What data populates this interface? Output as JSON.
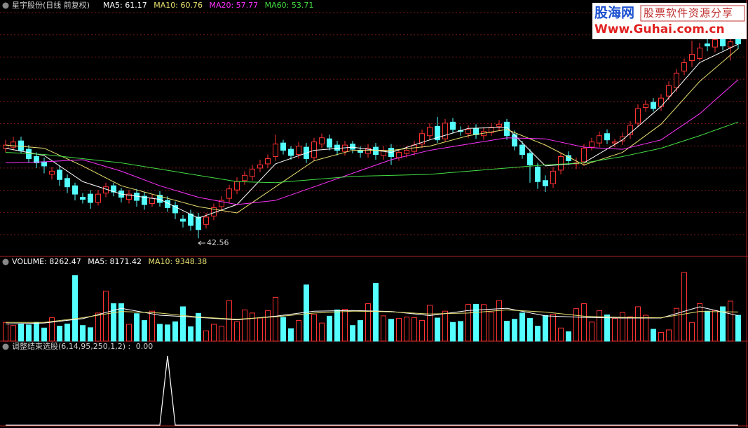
{
  "chart_data": [
    {
      "type": "candlestick",
      "title": "星宇股份(日线 前复权)",
      "ylim": [
        40.9,
        64.4
      ],
      "up_color": "#ff3232",
      "down_color": "#54ffff",
      "open": [
        51.2,
        51.3,
        51.9,
        51.1,
        50.4,
        49.9,
        48.7,
        49.1,
        48.3,
        47.6,
        46.5,
        46.8,
        46.0,
        46.9,
        47.6,
        47.1,
        46.3,
        46.9,
        46.6,
        45.9,
        46.7,
        46.2,
        45.7,
        44.4,
        44.9,
        44.6,
        43.9,
        44.7,
        45.6,
        46.4,
        47.2,
        48.1,
        48.5,
        49.3,
        49.7,
        50.4,
        51.7,
        51.1,
        50.6,
        51.3,
        50.3,
        51.6,
        52.1,
        51.5,
        50.9,
        51.6,
        51.0,
        50.7,
        51.3,
        50.5,
        51.2,
        50.3,
        50.7,
        50.9,
        51.6,
        52.4,
        53.3,
        52.1,
        53.7,
        52.9,
        52.6,
        53.1,
        52.4,
        52.7,
        53.3,
        53.7,
        52.5,
        51.5,
        50.7,
        49.4,
        48.1,
        47.8,
        49.1,
        50.5,
        49.7,
        49.9,
        51.3,
        51.7,
        52.6,
        51.7,
        51.9,
        52.5,
        53.6,
        55.1,
        55.6,
        55.2,
        56.2,
        57.0,
        58.6,
        59.6,
        59.8,
        61.2,
        60.9,
        61.7,
        60.9,
        61.8
      ],
      "high": [
        52.0,
        52.3,
        52.3,
        51.5,
        50.8,
        50.3,
        49.4,
        49.5,
        48.7,
        47.9,
        46.9,
        47.2,
        47.2,
        47.9,
        47.9,
        47.4,
        47.2,
        47.3,
        47.0,
        46.8,
        47.1,
        46.6,
        46.1,
        44.8,
        45.3,
        45.0,
        45.0,
        45.9,
        46.6,
        47.7,
        48.4,
        49.0,
        49.6,
        50.1,
        50.6,
        52.5,
        52.0,
        51.4,
        51.8,
        51.7,
        52.2,
        52.6,
        52.5,
        51.9,
        51.9,
        51.9,
        51.4,
        51.6,
        51.7,
        51.4,
        51.6,
        51.1,
        51.4,
        51.9,
        53.0,
        53.6,
        54.2,
        54.0,
        54.1,
        53.3,
        53.4,
        53.5,
        53.2,
        53.6,
        53.9,
        54.0,
        52.9,
        51.9,
        51.1,
        49.8,
        48.6,
        49.4,
        50.8,
        50.9,
        50.3,
        51.6,
        52.2,
        52.8,
        53.0,
        52.1,
        52.7,
        53.8,
        55.4,
        55.8,
        56.0,
        56.4,
        57.6,
        58.8,
        59.8,
        61.5,
        61.3,
        62.0,
        62.3,
        62.2,
        61.8,
        62.2
      ],
      "low": [
        50.8,
        51.0,
        50.7,
        49.8,
        49.3,
        48.8,
        48.2,
        47.6,
        46.9,
        46.2,
        45.9,
        45.4,
        45.7,
        46.5,
        46.6,
        46.0,
        45.9,
        45.6,
        45.3,
        45.6,
        45.6,
        45.1,
        44.4,
        43.6,
        43.3,
        42.56,
        43.5,
        44.3,
        45.2,
        46.0,
        46.8,
        47.7,
        48.1,
        48.9,
        49.3,
        50.0,
        50.6,
        50.1,
        50.2,
        49.8,
        50.0,
        51.2,
        51.0,
        50.5,
        50.5,
        50.7,
        50.3,
        50.3,
        50.1,
        50.1,
        49.6,
        50.0,
        50.3,
        50.5,
        51.2,
        52.0,
        51.7,
        51.8,
        52.6,
        52.4,
        52.2,
        52.1,
        52.0,
        52.4,
        52.9,
        52.0,
        51.0,
        50.2,
        47.9,
        47.3,
        47.0,
        47.4,
        48.7,
        49.6,
        49.2,
        49.5,
        51.0,
        51.3,
        51.6,
        51.3,
        51.5,
        52.1,
        53.2,
        54.7,
        54.7,
        54.8,
        55.8,
        56.6,
        58.2,
        59.0,
        59.6,
        60.5,
        60.4,
        60.6,
        59.6,
        60.7
      ],
      "close": [
        51.5,
        51.8,
        51.0,
        50.2,
        49.8,
        49.5,
        49.0,
        48.2,
        47.5,
        46.8,
        46.3,
        46.0,
        46.8,
        47.5,
        47.0,
        46.5,
        46.8,
        46.2,
        45.8,
        46.4,
        46.0,
        45.5,
        45.0,
        44.2,
        43.8,
        43.4,
        44.6,
        45.5,
        46.2,
        47.3,
        48.0,
        48.6,
        49.2,
        49.6,
        50.2,
        51.6,
        51.0,
        50.5,
        51.4,
        50.2,
        51.8,
        52.2,
        51.3,
        51.0,
        51.5,
        51.1,
        50.8,
        51.2,
        50.6,
        51.0,
        50.4,
        50.8,
        51.0,
        51.5,
        52.6,
        53.2,
        52.0,
        53.6,
        53.0,
        52.8,
        53.0,
        52.5,
        52.8,
        53.2,
        53.5,
        52.4,
        51.4,
        50.6,
        49.6,
        48.0,
        47.6,
        49.0,
        50.4,
        50.0,
        49.8,
        51.2,
        51.8,
        52.4,
        52.0,
        51.8,
        52.3,
        53.4,
        55.0,
        55.4,
        55.0,
        56.0,
        57.2,
        58.4,
        59.4,
        60.2,
        60.8,
        61.0,
        61.6,
        61.0,
        61.4,
        61.2
      ],
      "series": [
        {
          "name": "MA5:",
          "color": "#ffffff",
          "x": [
            0,
            5,
            10,
            15,
            20,
            25,
            30,
            35,
            40,
            45,
            50,
            55,
            60,
            65,
            70,
            75,
            80,
            85,
            90,
            95
          ],
          "values": [
            51.2,
            50.5,
            48.0,
            46.8,
            46.3,
            44.5,
            45.8,
            49.7,
            51.0,
            51.3,
            50.8,
            52.0,
            53.1,
            53.2,
            49.5,
            49.8,
            52.0,
            55.2,
            59.4,
            61.17
          ]
        },
        {
          "name": "MA10:",
          "color": "#e8e070",
          "x": [
            0,
            5,
            10,
            15,
            20,
            25,
            30,
            35,
            40,
            45,
            50,
            55,
            60,
            65,
            70,
            75,
            80,
            85,
            90,
            95
          ],
          "values": [
            51.5,
            51.2,
            49.5,
            47.6,
            46.6,
            45.6,
            45.0,
            47.5,
            50.0,
            51.0,
            51.0,
            51.4,
            52.4,
            53.0,
            51.5,
            49.6,
            50.8,
            53.5,
            57.6,
            60.76
          ]
        },
        {
          "name": "MA20:",
          "color": "#ff33ff",
          "x": [
            0,
            5,
            10,
            15,
            20,
            25,
            30,
            35,
            40,
            45,
            50,
            55,
            60,
            65,
            70,
            75,
            80,
            85,
            90,
            95
          ],
          "values": [
            49.8,
            49.9,
            50.1,
            49.0,
            47.6,
            46.5,
            45.8,
            46.2,
            47.5,
            48.8,
            50.1,
            51.0,
            51.6,
            52.2,
            52.1,
            51.3,
            51.1,
            52.0,
            54.5,
            57.77
          ]
        },
        {
          "name": "MA60:",
          "color": "#44dd44",
          "x": [
            0,
            5,
            10,
            15,
            20,
            25,
            30,
            35,
            40,
            45,
            50,
            55,
            60,
            65,
            70,
            75,
            80,
            85,
            90,
            95
          ],
          "values": [
            50.8,
            50.6,
            50.2,
            49.8,
            49.2,
            48.6,
            48.0,
            47.9,
            48.2,
            48.5,
            48.6,
            48.7,
            49.0,
            49.3,
            49.6,
            49.8,
            50.4,
            51.2,
            52.4,
            53.71
          ]
        }
      ]
    },
    {
      "type": "bar",
      "name": "VOLUME:",
      "ylim": [
        0,
        24000
      ],
      "values": [
        6000,
        5000,
        5500,
        5200,
        6000,
        4200,
        7500,
        4800,
        5500,
        21000,
        5000,
        4300,
        9000,
        16000,
        12000,
        12000,
        5400,
        8800,
        6600,
        9600,
        5400,
        5200,
        6200,
        11000,
        4600,
        8900,
        3300,
        5400,
        4800,
        13000,
        6200,
        10000,
        9000,
        7400,
        9800,
        14000,
        7600,
        4000,
        6600,
        18000,
        8600,
        5800,
        8000,
        10000,
        10200,
        5000,
        6600,
        12000,
        18500,
        8100,
        7000,
        7300,
        7700,
        7500,
        6600,
        11500,
        7400,
        9600,
        6000,
        6300,
        11800,
        11800,
        11700,
        9300,
        13000,
        6400,
        7000,
        9000,
        7300,
        4800,
        8200,
        8600,
        4200,
        3000,
        10400,
        12000,
        6100,
        9800,
        8400,
        7300,
        9200,
        7800,
        11000,
        8300,
        3800,
        2800,
        3600,
        10500,
        22000,
        6000,
        12000,
        9600,
        9800,
        11000,
        12800,
        8262.47
      ],
      "series": [
        {
          "name": "MA5:",
          "color": "#ffffff",
          "x": [
            0,
            5,
            10,
            15,
            20,
            25,
            30,
            35,
            40,
            45,
            50,
            55,
            60,
            65,
            70,
            75,
            80,
            85,
            90,
            95
          ],
          "values": [
            5500,
            5800,
            7200,
            10500,
            8300,
            7600,
            6800,
            8000,
            9600,
            9800,
            9500,
            8200,
            9800,
            10500,
            8100,
            7600,
            7400,
            7400,
            11000,
            8171.42
          ]
        },
        {
          "name": "MA10:",
          "color": "#e8e070",
          "x": [
            0,
            5,
            10,
            15,
            20,
            25,
            30,
            35,
            40,
            45,
            50,
            55,
            60,
            65,
            70,
            75,
            80,
            85,
            90,
            95
          ],
          "values": [
            6000,
            6000,
            7500,
            9500,
            9000,
            7700,
            7000,
            7800,
            9000,
            9600,
            9400,
            8700,
            9000,
            10000,
            9300,
            8000,
            7600,
            7500,
            9500,
            9348.38
          ]
        }
      ]
    },
    {
      "type": "line",
      "name": "调整结束选股(6,14,95,250,1,2) :",
      "color": "#ffffff",
      "ylim": [
        0,
        1
      ],
      "values": [
        0,
        0,
        0,
        0,
        0,
        0,
        0,
        0,
        0,
        0,
        0,
        0,
        0,
        0,
        0,
        0,
        0,
        0,
        0,
        0,
        0,
        1,
        0,
        0,
        0,
        0,
        0,
        0,
        0,
        0,
        0,
        0,
        0,
        0,
        0,
        0,
        0,
        0,
        0,
        0,
        0,
        0,
        0,
        0,
        0,
        0,
        0,
        0,
        0,
        0,
        0,
        0,
        0,
        0,
        0,
        0,
        0,
        0,
        0,
        0,
        0,
        0,
        0,
        0,
        0,
        0,
        0,
        0,
        0,
        0,
        0,
        0,
        0,
        0,
        0,
        0,
        0,
        0,
        0,
        0,
        0,
        0,
        0,
        0,
        0,
        0,
        0,
        0,
        0,
        0,
        0,
        0,
        0,
        0,
        0,
        0
      ],
      "value_labels": {
        "95": "0.00"
      }
    }
  ],
  "watermark": {
    "logo": "股海网",
    "slogan": "股票软件资源分享",
    "url": "Www.Guhai.com.cn"
  }
}
